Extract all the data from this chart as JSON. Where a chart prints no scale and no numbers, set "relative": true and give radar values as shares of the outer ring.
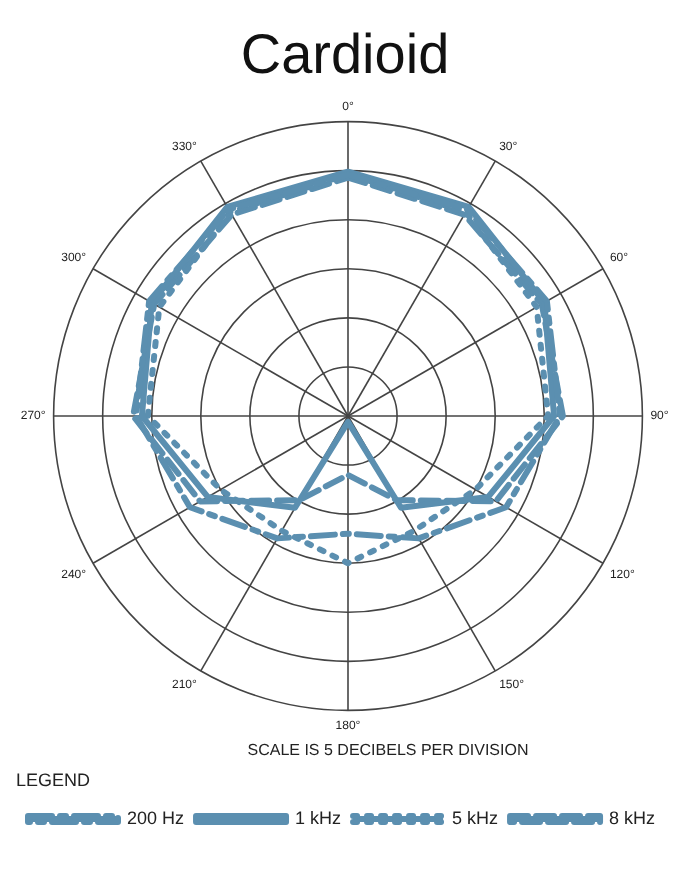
{
  "chart_data": {
    "type": "radar",
    "title": "Cardioid",
    "relative": true,
    "grid": true,
    "legend": "bottom",
    "legend_title": "LEGEND",
    "marker": "none",
    "annotations": [
      "SCALE IS 5 DECIBELS PER DIVISION"
    ],
    "categories": [
      "0°",
      "30°",
      "60°",
      "90°",
      "120°",
      "150°",
      "180°",
      "210°",
      "240°",
      "270°",
      "300°",
      "330°"
    ],
    "series": [
      {
        "name": "200 Hz",
        "color": "#5b8fb0",
        "line_style": "dashdot",
        "values": [
          0.82,
          0.81,
          0.78,
          0.72,
          0.62,
          0.48,
          0.4,
          0.48,
          0.62,
          0.72,
          0.78,
          0.81
        ]
      },
      {
        "name": "1 kHz",
        "color": "#5b8fb0",
        "line_style": "solid",
        "values": [
          0.83,
          0.82,
          0.77,
          0.7,
          0.55,
          0.36,
          0.02,
          0.36,
          0.55,
          0.7,
          0.77,
          0.82
        ]
      },
      {
        "name": "5 kHz",
        "color": "#5b8fb0",
        "line_style": "dotted",
        "values": [
          0.82,
          0.8,
          0.74,
          0.68,
          0.5,
          0.45,
          0.5,
          0.45,
          0.5,
          0.68,
          0.74,
          0.8
        ]
      },
      {
        "name": "8 kHz",
        "color": "#5b8fb0",
        "line_style": "dashed",
        "values": [
          0.81,
          0.79,
          0.76,
          0.73,
          0.58,
          0.33,
          0.2,
          0.33,
          0.58,
          0.73,
          0.76,
          0.79
        ]
      }
    ]
  }
}
